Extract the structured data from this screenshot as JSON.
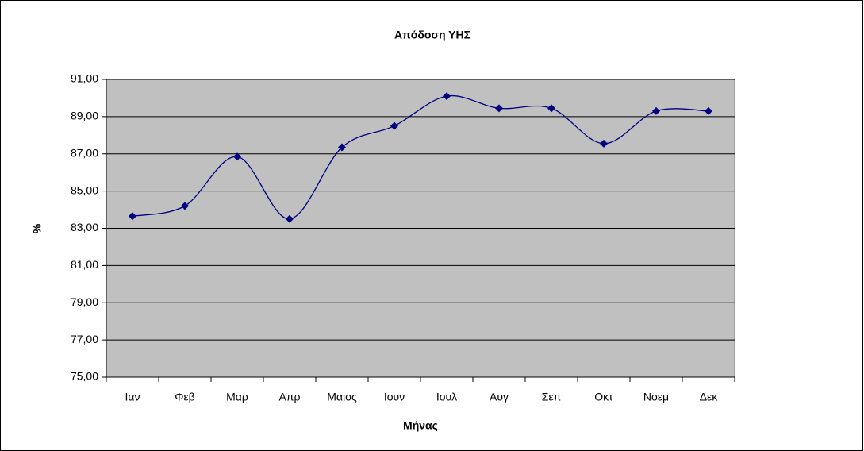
{
  "chart_data": {
    "type": "line",
    "title": "Απόδοση ΥΗΣ",
    "x_label": "Μήνας",
    "y_label": "%",
    "categories": [
      "Ιαν",
      "Φεβ",
      "Μαρ",
      "Απρ",
      "Μαιος",
      "Ιουν",
      "Ιουλ",
      "Αυγ",
      "Σεπ",
      "Οκτ",
      "Νοεμ",
      "Δεκ"
    ],
    "series": [
      {
        "name": "Απόδοση",
        "color": "#000080",
        "values": [
          83.65,
          84.2,
          86.85,
          83.5,
          87.35,
          88.5,
          90.1,
          89.45,
          89.45,
          87.55,
          89.3,
          89.3
        ]
      }
    ],
    "ylim": [
      75,
      91
    ],
    "yticks": [
      {
        "value": 75,
        "label": "75,00"
      },
      {
        "value": 77,
        "label": "77,00"
      },
      {
        "value": 79,
        "label": "79,00"
      },
      {
        "value": 81,
        "label": "81,00"
      },
      {
        "value": 83,
        "label": "83,00"
      },
      {
        "value": 85,
        "label": "85,00"
      },
      {
        "value": 87,
        "label": "87,00"
      },
      {
        "value": 89,
        "label": "89,00"
      },
      {
        "value": 91,
        "label": "91,00"
      }
    ],
    "grid": true,
    "plot_background": "#c0c0c0",
    "smooth": true
  }
}
